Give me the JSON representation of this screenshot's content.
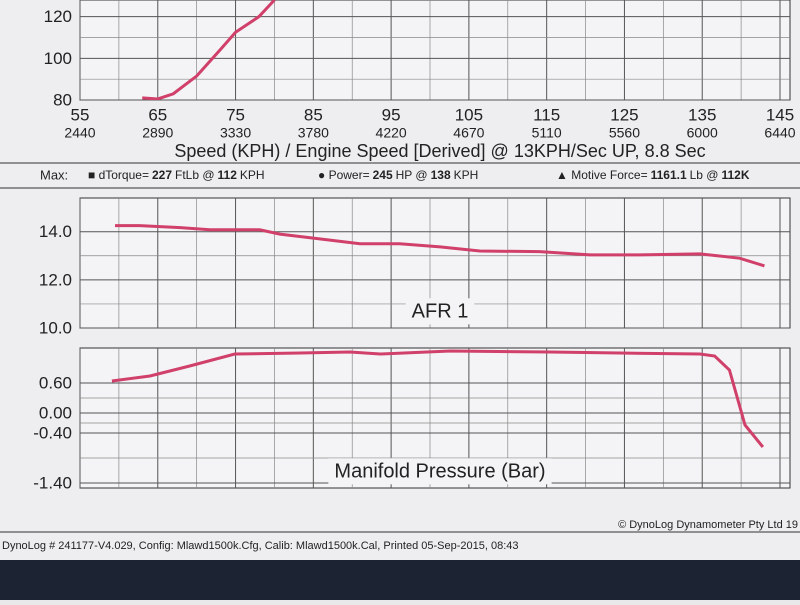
{
  "chart_data": [
    {
      "type": "line",
      "color": "#d0406a",
      "x": [
        63,
        65,
        67,
        70,
        73,
        75,
        78,
        80
      ],
      "values": [
        81,
        80.5,
        83,
        91.5,
        104,
        112.5,
        120,
        128
      ],
      "xlim": [
        55,
        145
      ],
      "xticks": [
        55,
        65,
        75,
        85,
        95,
        105,
        115,
        125,
        135,
        145
      ],
      "rpm_labels": [
        2440,
        2890,
        3330,
        3780,
        4220,
        4670,
        5110,
        5560,
        6000,
        6440
      ],
      "ylim": [
        80,
        128
      ],
      "yticks": [
        80,
        100,
        120
      ],
      "x_label": "Speed (KPH) / Engine Speed [Derived] @ 13KPH/Sec UP, 8.8 Sec",
      "grid": true
    },
    {
      "type": "line",
      "color": "#d0406a",
      "title": "AFR 1",
      "x": [
        59.5,
        62.7,
        67.9,
        71.7,
        78.1,
        80.7,
        84.6,
        91,
        96.1,
        101.3,
        106.4,
        114.1,
        120.6,
        127,
        134.7,
        139.8,
        143
      ],
      "values": [
        14.25,
        14.25,
        14.17,
        14.08,
        14.08,
        13.9,
        13.75,
        13.5,
        13.5,
        13.37,
        13.2,
        13.17,
        13.04,
        13.04,
        13.08,
        12.9,
        12.58
      ],
      "xlim": [
        55,
        145
      ],
      "ylim": [
        10,
        15.4
      ],
      "yticks": [
        {
          "value": 10,
          "label": "10.0"
        },
        {
          "value": 12,
          "label": "12.0"
        },
        {
          "value": 14,
          "label": "14.0"
        }
      ],
      "grid": true
    },
    {
      "type": "line",
      "color": "#d0406a",
      "title": "Manifold Pressure (Bar)",
      "x": [
        59.1,
        64,
        69.1,
        74.9,
        83.3,
        89.7,
        93.6,
        102.6,
        115.4,
        124.4,
        134.7,
        136.6,
        138.5,
        140.5,
        142.8
      ],
      "values": [
        0.64,
        0.74,
        0.94,
        1.18,
        1.2,
        1.22,
        1.18,
        1.24,
        1.22,
        1.2,
        1.18,
        1.14,
        0.86,
        -0.24,
        -0.68
      ],
      "xlim": [
        55,
        145
      ],
      "ylim": [
        -1.5,
        1.3
      ],
      "yticks": [
        {
          "value": 0.6,
          "label": "0.60"
        },
        {
          "value": 0,
          "label": "0.00"
        },
        {
          "value": -0.4,
          "label": "-0.40"
        },
        {
          "value": -1.4,
          "label": "-1.40"
        }
      ],
      "grid": true
    }
  ],
  "summary": {
    "label": "Max:",
    "items": [
      [
        {
          "text": "■ dTorque=",
          "bold": false
        },
        {
          "text": "227",
          "bold": true
        },
        {
          "text": "FtLb @",
          "bold": false
        },
        {
          "text": "112",
          "bold": true
        },
        {
          "text": "KPH",
          "bold": false
        }
      ],
      [
        {
          "text": "● Power=",
          "bold": false
        },
        {
          "text": "245",
          "bold": true
        },
        {
          "text": "HP @",
          "bold": false
        },
        {
          "text": "138",
          "bold": true
        },
        {
          "text": "KPH",
          "bold": false
        }
      ],
      [
        {
          "text": "▲ Motive Force=",
          "bold": false
        },
        {
          "text": "1161.1",
          "bold": true
        },
        {
          "text": "Lb @",
          "bold": false
        },
        {
          "text": "112K",
          "bold": true
        }
      ]
    ]
  },
  "footer": {
    "left": "DynoLog # 241177-V4.029, Config: Mlawd1500k.Cfg, Calib: Mlawd1500k.Cal, Printed 05-Sep-2015, 08:43",
    "right": "© DynoLog Dynamometer Pty Ltd 19"
  }
}
